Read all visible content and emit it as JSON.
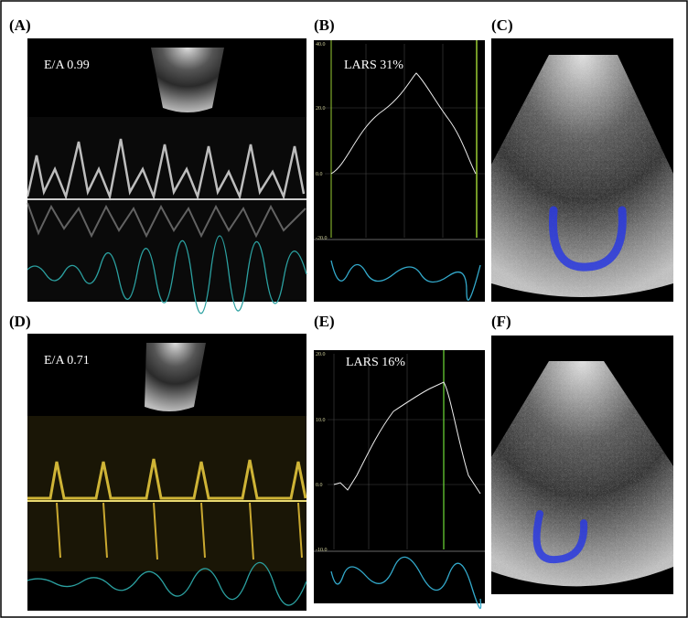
{
  "panels": [
    {
      "label": "(A)",
      "text": "E/A 0.99"
    },
    {
      "label": "(B)",
      "text": "LARS 31%",
      "ticks": [
        "40.0",
        "20.0",
        "0.0",
        "-20.0"
      ]
    },
    {
      "label": "(C)"
    },
    {
      "label": "(D)",
      "text": "E/A 0.71"
    },
    {
      "label": "(E)",
      "text": "LARS 16%",
      "ticks": [
        "20.0",
        "10.0",
        "0.0",
        "-10.0"
      ]
    },
    {
      "label": "(F)"
    }
  ]
}
